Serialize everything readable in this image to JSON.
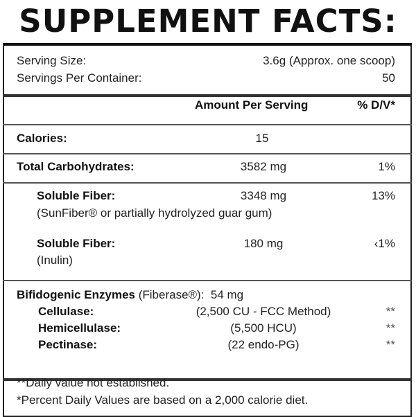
{
  "title": "SUPPLEMENT FACTS:",
  "serving": {
    "size_label": "Serving Size:",
    "size_value": "3.6g (Approx. one scoop)",
    "per_container_label": "Servings Per Container:",
    "per_container_value": "50"
  },
  "header": {
    "amount": "Amount Per Serving",
    "dv": "% D/V*"
  },
  "rows": [
    {
      "name": "Calories:",
      "amount": "15",
      "dv": ""
    },
    {
      "name": "Total Carbohydrates:",
      "amount": "3582 mg",
      "dv": "1%"
    },
    {
      "name": "Soluble Fiber:",
      "note": "(SunFiber® or partially hydrolyzed guar gum)",
      "amount": "3348 mg",
      "dv": "13%"
    },
    {
      "name": "Soluble Fiber:",
      "note": "(Inulin)",
      "amount": "180 mg",
      "dv": "‹1%"
    }
  ],
  "enzymes": {
    "name": "Bifidogenic Enzymes",
    "brand": "(Fiberase®):",
    "amount": "54 mg",
    "items": [
      {
        "name": "Cellulase:",
        "value": "(2,500 CU - FCC Method)",
        "dv": "**"
      },
      {
        "name": "Hemicellulase:",
        "value": "(5,500 HCU)",
        "dv": "**"
      },
      {
        "name": "Pectinase:",
        "value": "(22 endo-PG)",
        "dv": "**"
      }
    ]
  },
  "footnotes": [
    "**Daily value not established.",
    "*Percent Daily Values are based on a 2,000 calorie diet."
  ]
}
